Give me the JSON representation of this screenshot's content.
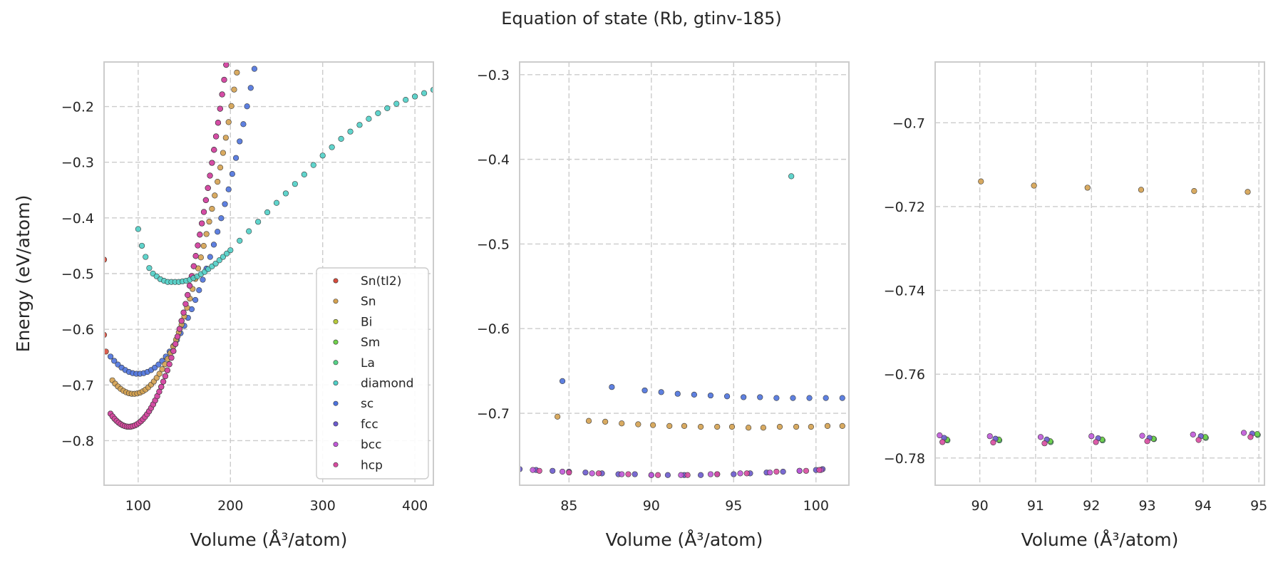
{
  "figure": {
    "title": "Equation of state (Rb, gtinv-185)"
  },
  "chart_data": [
    {
      "type": "scatter",
      "xlabel": "Volume (Å³/atom)",
      "ylabel": "Energy (eV/atom)",
      "xlim": [
        63,
        420
      ],
      "ylim": [
        -0.88,
        -0.12
      ],
      "xticks": [
        100,
        200,
        300,
        400
      ],
      "yticks": [
        -0.8,
        -0.7,
        -0.6,
        -0.5,
        -0.4,
        -0.3,
        -0.2
      ],
      "grid": true,
      "legend": {
        "placement": "lower right",
        "entries": [
          "Sn(tI2)",
          "Sn",
          "Bi",
          "Sm",
          "La",
          "diamond",
          "sc",
          "fcc",
          "bcc",
          "hcp"
        ]
      },
      "series": [
        {
          "name": "sc",
          "color": "#4c72dd",
          "curve": {
            "x0": 100,
            "e0": -0.68,
            "k": 3.45e-05,
            "xmin": 70,
            "xmax": 300,
            "step": 4
          }
        },
        {
          "name": "Sn",
          "color": "#d4a150",
          "curve": {
            "x0": 95,
            "e0": -0.716,
            "k": 4.6e-05,
            "xmin": 72,
            "xmax": 287,
            "step": 3
          }
        },
        {
          "name": "fcc",
          "color": "#6a5acd",
          "curve": {
            "x0": 90,
            "e0": -0.775,
            "k": 5.85e-05,
            "xmin": 70,
            "xmax": 270,
            "step": 2.2
          }
        },
        {
          "name": "bcc",
          "color": "#c058d8",
          "curve": {
            "x0": 90,
            "e0": -0.775,
            "k": 5.85e-05,
            "xmin": 70,
            "xmax": 270,
            "step": 2.2
          }
        },
        {
          "name": "hcp",
          "color": "#d84aa0",
          "curve": {
            "x0": 90,
            "e0": -0.775,
            "k": 5.85e-05,
            "xmin": 70,
            "xmax": 272,
            "step": 2.2
          }
        },
        {
          "name": "diamond",
          "color": "#4fcfc7",
          "points": [
            [
              100,
              -0.42
            ],
            [
              104,
              -0.45
            ],
            [
              108,
              -0.47
            ],
            [
              112,
              -0.49
            ],
            [
              116,
              -0.5
            ],
            [
              120,
              -0.505
            ],
            [
              124,
              -0.51
            ],
            [
              128,
              -0.513
            ],
            [
              132,
              -0.515
            ],
            [
              136,
              -0.515
            ],
            [
              140,
              -0.515
            ],
            [
              144,
              -0.515
            ],
            [
              148,
              -0.514
            ],
            [
              152,
              -0.513
            ],
            [
              156,
              -0.511
            ],
            [
              160,
              -0.508
            ],
            [
              164,
              -0.505
            ],
            [
              168,
              -0.501
            ],
            [
              172,
              -0.497
            ],
            [
              176,
              -0.492
            ],
            [
              180,
              -0.487
            ],
            [
              184,
              -0.482
            ],
            [
              188,
              -0.476
            ],
            [
              192,
              -0.47
            ],
            [
              196,
              -0.464
            ],
            [
              200,
              -0.458
            ],
            [
              210,
              -0.441
            ],
            [
              220,
              -0.424
            ],
            [
              230,
              -0.407
            ],
            [
              240,
              -0.39
            ],
            [
              250,
              -0.373
            ],
            [
              260,
              -0.356
            ],
            [
              270,
              -0.339
            ],
            [
              280,
              -0.322
            ],
            [
              290,
              -0.305
            ],
            [
              300,
              -0.288
            ],
            [
              310,
              -0.273
            ],
            [
              320,
              -0.258
            ],
            [
              330,
              -0.245
            ],
            [
              340,
              -0.233
            ],
            [
              350,
              -0.222
            ],
            [
              360,
              -0.212
            ],
            [
              370,
              -0.203
            ],
            [
              380,
              -0.195
            ],
            [
              390,
              -0.188
            ],
            [
              400,
              -0.182
            ],
            [
              410,
              -0.176
            ],
            [
              420,
              -0.17
            ]
          ]
        },
        {
          "name": "Sn(tI2)",
          "color": "#d64c3c",
          "points": [
            [
              63,
              -0.475
            ],
            [
              63,
              -0.61
            ],
            [
              65,
              -0.64
            ]
          ]
        }
      ]
    },
    {
      "type": "scatter",
      "xlabel": "Volume (Å³/atom)",
      "ylabel": "",
      "xlim": [
        82,
        102
      ],
      "ylim": [
        -0.785,
        -0.285
      ],
      "xticks": [
        85,
        90,
        95,
        100
      ],
      "yticks": [
        -0.7,
        -0.6,
        -0.5,
        -0.4,
        -0.3
      ],
      "grid": true,
      "series": [
        {
          "name": "sc",
          "color": "#4c72dd",
          "points": [
            [
              84.6,
              -0.662
            ],
            [
              87.6,
              -0.669
            ],
            [
              89.6,
              -0.673
            ],
            [
              90.6,
              -0.675
            ],
            [
              91.6,
              -0.677
            ],
            [
              92.6,
              -0.678
            ],
            [
              93.6,
              -0.679
            ],
            [
              94.6,
              -0.68
            ],
            [
              95.6,
              -0.681
            ],
            [
              96.6,
              -0.681
            ],
            [
              97.6,
              -0.682
            ],
            [
              98.6,
              -0.682
            ],
            [
              99.6,
              -0.682
            ],
            [
              100.6,
              -0.682
            ],
            [
              101.6,
              -0.682
            ]
          ]
        },
        {
          "name": "Sn",
          "color": "#d4a150",
          "points": [
            [
              84.3,
              -0.704
            ],
            [
              86.2,
              -0.709
            ],
            [
              87.2,
              -0.71
            ],
            [
              88.2,
              -0.712
            ],
            [
              89.2,
              -0.713
            ],
            [
              90.1,
              -0.714
            ],
            [
              91.1,
              -0.715
            ],
            [
              92.0,
              -0.715
            ],
            [
              93.0,
              -0.716
            ],
            [
              94.0,
              -0.716
            ],
            [
              94.9,
              -0.716
            ],
            [
              95.9,
              -0.717
            ],
            [
              96.8,
              -0.717
            ],
            [
              97.8,
              -0.716
            ],
            [
              98.8,
              -0.716
            ],
            [
              99.7,
              -0.716
            ],
            [
              100.7,
              -0.715
            ],
            [
              101.6,
              -0.715
            ]
          ]
        },
        {
          "name": "diamond",
          "color": "#4fcfc7",
          "points": [
            [
              98.5,
              -0.42
            ]
          ]
        },
        {
          "name": "fcc",
          "color": "#6a5acd",
          "points": [
            [
              82.0,
              -0.766
            ],
            [
              83.0,
              -0.767
            ],
            [
              84.0,
              -0.768
            ],
            [
              85.0,
              -0.769
            ],
            [
              86.0,
              -0.77
            ],
            [
              87.0,
              -0.771
            ],
            [
              88.0,
              -0.772
            ],
            [
              89.0,
              -0.772
            ],
            [
              90.0,
              -0.773
            ],
            [
              91.0,
              -0.773
            ],
            [
              92.0,
              -0.773
            ],
            [
              93.0,
              -0.773
            ],
            [
              94.0,
              -0.772
            ],
            [
              95.0,
              -0.772
            ],
            [
              96.0,
              -0.771
            ],
            [
              97.0,
              -0.77
            ],
            [
              98.0,
              -0.769
            ],
            [
              99.0,
              -0.768
            ],
            [
              100.0,
              -0.767
            ],
            [
              100.4,
              -0.766
            ]
          ]
        },
        {
          "name": "bcc",
          "color": "#c058d8",
          "points": [
            [
              82.8,
              -0.767
            ],
            [
              84.6,
              -0.769
            ],
            [
              86.4,
              -0.771
            ],
            [
              88.2,
              -0.772
            ],
            [
              90.0,
              -0.773
            ],
            [
              91.8,
              -0.773
            ],
            [
              93.6,
              -0.772
            ],
            [
              95.4,
              -0.771
            ],
            [
              97.2,
              -0.77
            ],
            [
              99.0,
              -0.768
            ],
            [
              100.3,
              -0.767
            ]
          ]
        },
        {
          "name": "hcp",
          "color": "#d84aa0",
          "points": [
            [
              83.2,
              -0.768
            ],
            [
              85.0,
              -0.77
            ],
            [
              86.8,
              -0.771
            ],
            [
              88.6,
              -0.772
            ],
            [
              90.4,
              -0.773
            ],
            [
              92.2,
              -0.773
            ],
            [
              94.0,
              -0.772
            ],
            [
              95.8,
              -0.771
            ],
            [
              97.6,
              -0.769
            ],
            [
              99.4,
              -0.768
            ],
            [
              100.2,
              -0.767
            ]
          ]
        }
      ]
    },
    {
      "type": "scatter",
      "xlabel": "Volume (Å³/atom)",
      "ylabel": "",
      "xlim": [
        89.2,
        95.1
      ],
      "ylim": [
        -0.7865,
        -0.6855
      ],
      "xticks": [
        90,
        91,
        92,
        93,
        94,
        95
      ],
      "yticks": [
        -0.78,
        -0.76,
        -0.74,
        -0.72,
        -0.7
      ],
      "grid": true,
      "series": [
        {
          "name": "Sn",
          "color": "#d4a150",
          "points": [
            [
              90.02,
              -0.714
            ],
            [
              90.97,
              -0.715
            ],
            [
              91.93,
              -0.7155
            ],
            [
              92.89,
              -0.716
            ],
            [
              93.84,
              -0.7163
            ],
            [
              94.8,
              -0.7165
            ]
          ]
        },
        {
          "name": "La",
          "color": "#55d186",
          "points": [
            [
              89.42,
              -0.7758
            ],
            [
              90.35,
              -0.7758
            ],
            [
              91.27,
              -0.7762
            ],
            [
              92.2,
              -0.7758
            ],
            [
              93.12,
              -0.7755
            ],
            [
              94.05,
              -0.7752
            ],
            [
              94.98,
              -0.7745
            ]
          ]
        },
        {
          "name": "Sm",
          "color": "#6fd14a",
          "points": [
            [
              89.41,
              -0.7756
            ],
            [
              90.34,
              -0.7756
            ],
            [
              91.26,
              -0.776
            ],
            [
              92.19,
              -0.7756
            ],
            [
              93.11,
              -0.7754
            ],
            [
              94.04,
              -0.775
            ],
            [
              94.97,
              -0.7743
            ]
          ]
        },
        {
          "name": "fcc",
          "color": "#6a5acd",
          "points": [
            [
              89.36,
              -0.7752
            ],
            [
              90.28,
              -0.7754
            ],
            [
              91.2,
              -0.7756
            ],
            [
              92.12,
              -0.7753
            ],
            [
              93.04,
              -0.7752
            ],
            [
              93.96,
              -0.7748
            ],
            [
              94.88,
              -0.7742
            ]
          ]
        },
        {
          "name": "bcc",
          "color": "#c058d8",
          "points": [
            [
              89.28,
              -0.7746
            ],
            [
              90.18,
              -0.7748
            ],
            [
              91.09,
              -0.775
            ],
            [
              92.0,
              -0.7748
            ],
            [
              92.91,
              -0.7747
            ],
            [
              93.82,
              -0.7744
            ],
            [
              94.73,
              -0.774
            ]
          ]
        },
        {
          "name": "hcp",
          "color": "#d84aa0",
          "points": [
            [
              89.33,
              -0.7762
            ],
            [
              90.24,
              -0.7763
            ],
            [
              91.16,
              -0.7765
            ],
            [
              92.08,
              -0.7762
            ],
            [
              93.0,
              -0.776
            ],
            [
              93.92,
              -0.7757
            ],
            [
              94.85,
              -0.775
            ]
          ]
        }
      ]
    }
  ],
  "legend_colors": {
    "Sn(tI2)": "#d64c3c",
    "Sn": "#d4a150",
    "Bi": "#b5c83a",
    "Sm": "#6fd14a",
    "La": "#55d186",
    "diamond": "#4fcfc7",
    "sc": "#4c72dd",
    "fcc": "#6a5acd",
    "bcc": "#c058d8",
    "hcp": "#d84aa0"
  }
}
